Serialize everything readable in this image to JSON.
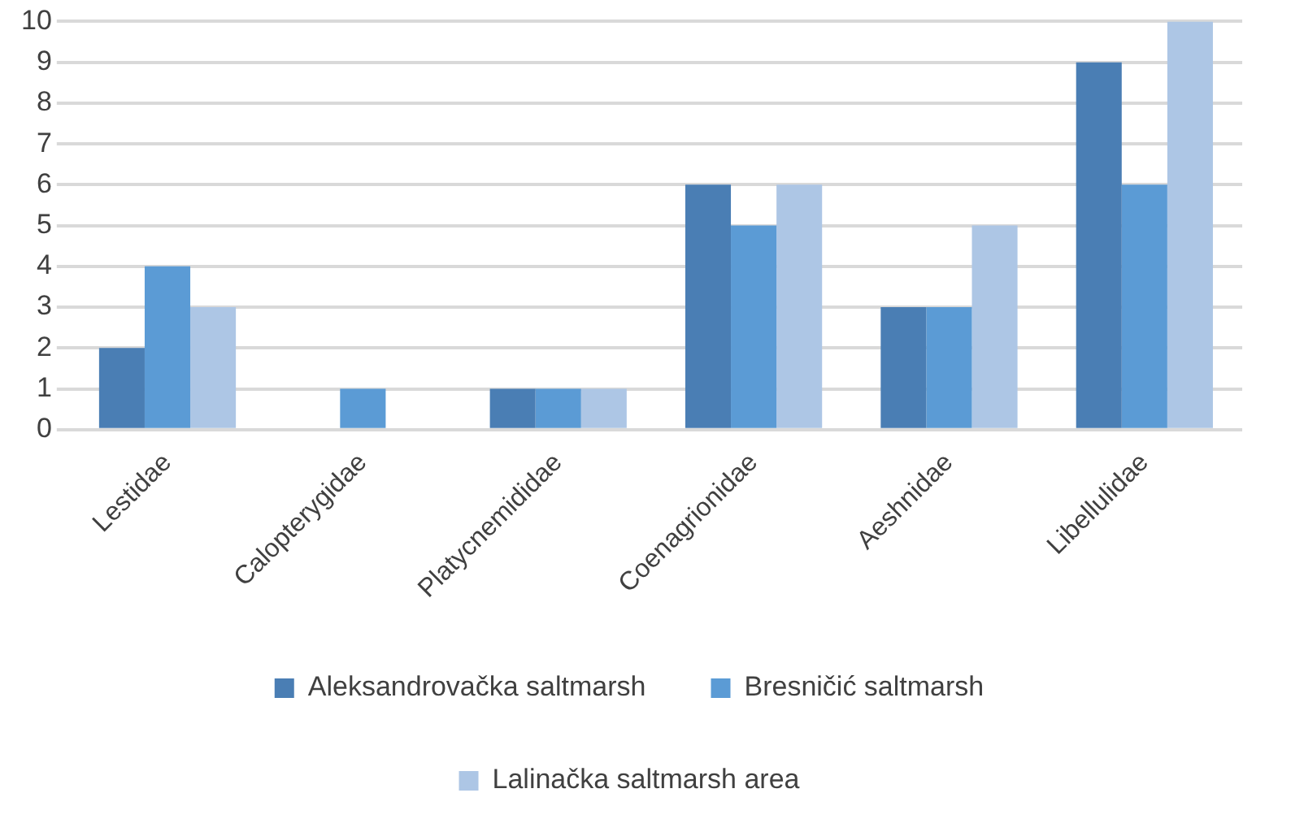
{
  "chart_data": {
    "type": "bar",
    "categories": [
      "Lestidae",
      "Calopterygidae",
      "Platycnemididae",
      "Coenagrionidae",
      "Aeshnidae",
      "Libellulidae"
    ],
    "series": [
      {
        "name": "Aleksandrovačka saltmarsh",
        "color": "#4a7eb4",
        "values": [
          2,
          0,
          1,
          6,
          3,
          9
        ]
      },
      {
        "name": "Bresničić saltmarsh",
        "color": "#5b9bd5",
        "values": [
          4,
          1,
          1,
          5,
          3,
          6
        ]
      },
      {
        "name": "Lalinačka saltmarsh area",
        "color": "#adc6e5",
        "values": [
          3,
          0,
          1,
          6,
          5,
          10
        ]
      }
    ],
    "ylim": [
      0,
      10
    ],
    "yticks": [
      0,
      1,
      2,
      3,
      4,
      5,
      6,
      7,
      8,
      9,
      10
    ],
    "grid": "y",
    "legend": "bottom"
  }
}
